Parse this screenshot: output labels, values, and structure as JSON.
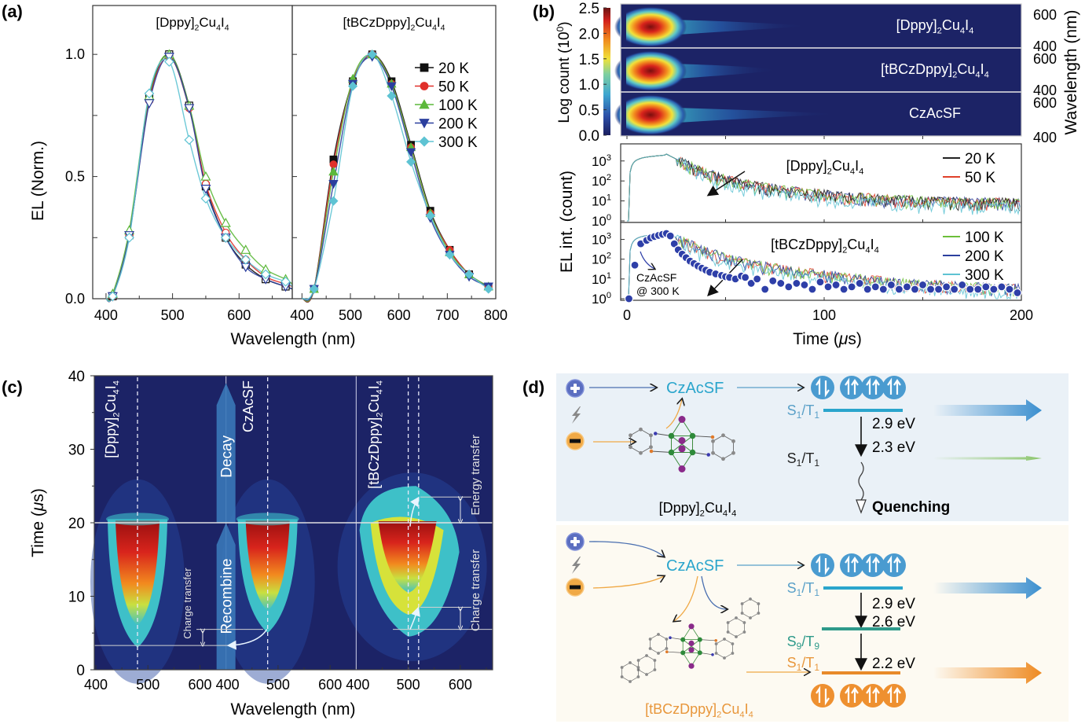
{
  "figure": {
    "panels": [
      "(a)",
      "(b)",
      "(c)",
      "(d)"
    ]
  },
  "chart_data": [
    {
      "id": "a",
      "type": "line",
      "panel_label": "(a)",
      "ylabel": "EL (Norm.)",
      "xlabel": "Wavelength (nm)",
      "ylim": [
        0,
        1.2
      ],
      "yticks": [
        "0.0",
        "0.5",
        "1.0"
      ],
      "subplots": [
        {
          "title": "[Dppy]2Cu4I4",
          "title_parts": [
            "[Dppy]",
            "2",
            "Cu",
            "4",
            "I",
            "4"
          ],
          "xlim": [
            380,
            680
          ],
          "xticks": [
            "400",
            "500",
            "600"
          ],
          "marker_style": "open",
          "series": [
            {
              "name": "20 K",
              "x": [
                400,
                410,
                435,
                465,
                495,
                525,
                550,
                580,
                610,
                640,
                670,
                680
              ],
              "y": [
                0.0,
                0.01,
                0.26,
                0.82,
                1.0,
                0.79,
                0.46,
                0.25,
                0.14,
                0.08,
                0.05,
                0.04
              ]
            },
            {
              "name": "50 K",
              "x": [
                400,
                410,
                435,
                465,
                495,
                525,
                550,
                580,
                610,
                640,
                670,
                680
              ],
              "y": [
                0.0,
                0.01,
                0.26,
                0.81,
                0.99,
                0.78,
                0.47,
                0.27,
                0.16,
                0.09,
                0.06,
                0.05
              ]
            },
            {
              "name": "100 K",
              "x": [
                400,
                410,
                435,
                465,
                495,
                525,
                550,
                580,
                610,
                640,
                670,
                680
              ],
              "y": [
                0.0,
                0.02,
                0.28,
                0.83,
                1.0,
                0.79,
                0.5,
                0.31,
                0.2,
                0.12,
                0.08,
                0.06
              ]
            },
            {
              "name": "200 K",
              "x": [
                400,
                410,
                435,
                465,
                495,
                525,
                550,
                580,
                610,
                640,
                670,
                680
              ],
              "y": [
                0.0,
                0.01,
                0.26,
                0.8,
                0.99,
                0.78,
                0.45,
                0.25,
                0.13,
                0.08,
                0.05,
                0.04
              ]
            },
            {
              "name": "300 K",
              "x": [
                400,
                410,
                435,
                465,
                495,
                525,
                550,
                580,
                610,
                640,
                670,
                680
              ],
              "y": [
                0.0,
                0.01,
                0.25,
                0.84,
                0.97,
                0.65,
                0.41,
                0.25,
                0.16,
                0.1,
                0.07,
                0.05
              ]
            }
          ]
        },
        {
          "title": "[tBCzDppy]2Cu4I4",
          "title_parts": [
            "[tBCzDppy]",
            "2",
            "Cu",
            "4",
            "I",
            "4"
          ],
          "xlim": [
            380,
            800
          ],
          "xticks": [
            "400",
            "500",
            "600",
            "700",
            "800"
          ],
          "marker_style": "filled",
          "series": [
            {
              "name": "20 K",
              "x": [
                400,
                425,
                465,
                505,
                545,
                585,
                625,
                665,
                705,
                745,
                785
              ],
              "y": [
                0.0,
                0.04,
                0.57,
                0.89,
                1.0,
                0.89,
                0.63,
                0.36,
                0.2,
                0.1,
                0.05
              ]
            },
            {
              "name": "50 K",
              "x": [
                400,
                425,
                465,
                505,
                545,
                585,
                625,
                665,
                705,
                745,
                785
              ],
              "y": [
                0.0,
                0.04,
                0.55,
                0.89,
                1.0,
                0.88,
                0.62,
                0.35,
                0.2,
                0.1,
                0.05
              ]
            },
            {
              "name": "100 K",
              "x": [
                400,
                425,
                465,
                505,
                545,
                585,
                625,
                665,
                705,
                745,
                785
              ],
              "y": [
                0.0,
                0.04,
                0.52,
                0.9,
                1.0,
                0.88,
                0.62,
                0.35,
                0.19,
                0.1,
                0.05
              ]
            },
            {
              "name": "200 K",
              "x": [
                400,
                425,
                465,
                505,
                545,
                585,
                625,
                665,
                705,
                745,
                785
              ],
              "y": [
                0.0,
                0.04,
                0.47,
                0.88,
                0.99,
                0.87,
                0.6,
                0.33,
                0.18,
                0.09,
                0.05
              ]
            },
            {
              "name": "300 K",
              "x": [
                400,
                425,
                465,
                505,
                545,
                585,
                625,
                665,
                705,
                745,
                785
              ],
              "y": [
                0.0,
                0.04,
                0.4,
                0.87,
                1.0,
                0.83,
                0.56,
                0.34,
                0.18,
                0.1,
                0.04
              ]
            }
          ]
        }
      ],
      "legend": {
        "placement": "top-right of right subplot",
        "entries": [
          {
            "name": "20 K",
            "color": "#111111",
            "marker": "square"
          },
          {
            "name": "50 K",
            "color": "#e0302a",
            "marker": "circle"
          },
          {
            "name": "100 K",
            "color": "#5cb83a",
            "marker": "triangle-up"
          },
          {
            "name": "200 K",
            "color": "#2b3f9e",
            "marker": "triangle-down"
          },
          {
            "name": "300 K",
            "color": "#5ec3d3",
            "marker": "diamond"
          }
        ]
      }
    },
    {
      "id": "b-top",
      "type": "heatmap",
      "panel_label": "(b)",
      "colorbar": {
        "label": "Log count (10⁰)",
        "label_parts": [
          "Log count (10",
          "0",
          ")"
        ],
        "ticks": [
          "0.0",
          "0.5",
          "1.0",
          "1.5",
          "2.0",
          "2.5"
        ],
        "range": [
          0,
          2.5
        ]
      },
      "ylabel_right": "Wavelength (nm)",
      "yticks_right": [
        "400",
        "600"
      ],
      "xlim": [
        0,
        200
      ],
      "rows": [
        {
          "name": "[Dppy]2Cu4I4",
          "name_parts": [
            "[Dppy]",
            "2",
            "Cu",
            "4",
            "I",
            "4"
          ],
          "peak_time_us": 20,
          "peak_wavelength_nm": 480,
          "tail_extent": 0.45
        },
        {
          "name": "[tBCzDppy]2Cu4I4",
          "name_parts": [
            "[tBCzDppy]",
            "2",
            "Cu",
            "4",
            "I",
            "4"
          ],
          "peak_time_us": 20,
          "peak_wavelength_nm": 500,
          "tail_extent": 0.35
        },
        {
          "name": "CzAcSF",
          "name_parts": [
            "CzAcSF"
          ],
          "peak_time_us": 20,
          "peak_wavelength_nm": 480,
          "tail_extent": 0.55
        }
      ]
    },
    {
      "id": "b-bottom",
      "type": "line",
      "xlabel": "Time (μs)",
      "xlabel_parts": [
        "Time (",
        "μ",
        "s)"
      ],
      "ylabel": "EL int. (count)",
      "xlim": [
        0,
        200
      ],
      "xticks": [
        "0",
        "100",
        "200"
      ],
      "yscale": "log",
      "ylim": [
        1,
        5000
      ],
      "yticks": [
        {
          "base": "10",
          "exp": "0"
        },
        {
          "base": "10",
          "exp": "1"
        },
        {
          "base": "10",
          "exp": "2"
        },
        {
          "base": "10",
          "exp": "3"
        }
      ],
      "subplots": [
        {
          "title": "[Dppy]2Cu4I4",
          "title_parts": [
            "[Dppy]",
            "2",
            "Cu",
            "4",
            "I",
            "4"
          ],
          "legend": [
            {
              "name": "20 K",
              "color": "#222222"
            },
            {
              "name": "50 K",
              "color": "#e0402a"
            }
          ],
          "peak_count": 2000,
          "peak_time_us": 20,
          "floor_count": 8
        },
        {
          "title": "[tBCzDppy]2Cu4I4",
          "title_parts": [
            "[tBCzDppy]",
            "2",
            "Cu",
            "4",
            "I",
            "4"
          ],
          "legend": [
            {
              "name": "100 K",
              "color": "#6cbf3a"
            },
            {
              "name": "200 K",
              "color": "#2b3f9e"
            },
            {
              "name": "300 K",
              "color": "#5ec3d3"
            }
          ],
          "peak_count": 2000,
          "peak_time_us": 20,
          "floor_count": 3,
          "reference": {
            "name": "CzAcSF @ 300 K",
            "line1": "CzAcSF",
            "line2": "@ 300 K",
            "color": "#2e3fa8",
            "x": [
              1,
              4,
              7,
              10,
              12,
              14,
              16,
              18,
              20,
              22,
              24,
              26,
              28,
              30,
              32,
              34,
              36,
              38,
              40,
              42,
              45,
              48,
              50,
              52,
              55,
              58,
              60,
              63,
              66,
              70,
              74,
              78,
              82,
              86,
              90,
              94,
              98,
              102,
              106,
              110,
              114,
              118,
              122,
              126,
              130,
              134,
              138,
              142,
              146,
              150,
              154,
              158,
              162,
              166,
              170,
              174,
              178,
              182,
              186,
              190,
              194,
              198
            ],
            "y": [
              1,
              50,
              600,
              900,
              1200,
              1400,
              1600,
              1800,
              2000,
              1500,
              600,
              300,
              180,
              120,
              80,
              60,
              45,
              35,
              28,
              22,
              18,
              15,
              13,
              12,
              10,
              14,
              12,
              6,
              10,
              3,
              8,
              6,
              4,
              6,
              5,
              3,
              7,
              4,
              5,
              3,
              4,
              6,
              3,
              4,
              3,
              5,
              3,
              4,
              3,
              5,
              3,
              3,
              4,
              3,
              5,
              3,
              3,
              4,
              3,
              4,
              3,
              2
            ]
          }
        }
      ]
    },
    {
      "id": "c",
      "type": "heatmap",
      "panel_label": "(c)",
      "ylabel": "Time (μs)",
      "ylabel_parts": [
        "Time (",
        "μ",
        "s)"
      ],
      "xlabel": "Wavelength (nm)",
      "ylim": [
        0,
        40
      ],
      "yticks": [
        "0",
        "10",
        "20",
        "30",
        "40"
      ],
      "subplots": [
        {
          "name": "[Dppy]2Cu4I4",
          "name_parts": [
            "[Dppy]",
            "2",
            "Cu",
            "4",
            "I",
            "4"
          ],
          "xlim": [
            400,
            650
          ],
          "xticks": [
            "400",
            "500",
            "600"
          ],
          "peak_wavelength_nm": 480,
          "onset_time_us": 3.5,
          "end_time_us": 20
        },
        {
          "name": "CzAcSF",
          "name_parts": [
            "CzAcSF"
          ],
          "xlim": [
            400,
            650
          ],
          "xticks": [
            "400",
            "500",
            "600"
          ],
          "peak_wavelength_nm": 480,
          "onset_time_us": 5.5,
          "end_time_us": 20
        },
        {
          "name": "[tBCzDppy]2Cu4I4",
          "name_parts": [
            "[tBCzDppy]",
            "2",
            "Cu",
            "4",
            "I",
            "4"
          ],
          "xlim": [
            400,
            650
          ],
          "xticks": [
            "400",
            "500",
            "600"
          ],
          "peak_wavelength_nm": 500,
          "onset_time_us": 5.5,
          "end_time_us": 20,
          "energy_transfer_end_us": 23.5
        }
      ],
      "annotations": {
        "decay": "Decay",
        "recombine": "Recombine",
        "charge_transfer_left": "Charge transfer",
        "charge_transfer_right": "Charge transfer",
        "energy_transfer": "Energy transfer",
        "pulse_end_time_us": 20
      }
    }
  ],
  "diagram": {
    "panel_label": "(d)",
    "top": {
      "background": "#eaf1f7",
      "hole_icon": "plus-circle",
      "electron_icon": "minus-circle",
      "voltage_icon": "lightning-bolt",
      "host_label": "CzAcSF",
      "host_color": "#2aa5cc",
      "molecule_label": "[Dppy]2Cu4I4",
      "molecule_label_parts": [
        "[Dppy]",
        "2",
        "Cu",
        "4",
        "I",
        "4"
      ],
      "levels": [
        {
          "label": "S1/T1",
          "sub1": "1",
          "sub2": "1",
          "color": "#2aa5cc",
          "label_color": "#5aa0c8"
        },
        {
          "label": "S1/T1",
          "sub1": "1",
          "sub2": "1",
          "color": "#7dbb44",
          "label_color": "#222222"
        }
      ],
      "energies": [
        "2.9 eV",
        "2.3 eV"
      ],
      "quenching": "Quenching",
      "spin_color": "#4a9bd0",
      "emission_colors": [
        "#3b8fcf",
        "#8cc66c"
      ]
    },
    "bottom": {
      "background": "#fdfaf2",
      "hole_icon": "plus-circle",
      "electron_icon": "minus-circle",
      "voltage_icon": "lightning-bolt",
      "host_label": "CzAcSF",
      "host_color": "#2aa5cc",
      "molecule_label": "[tBCzDppy]2Cu4I4",
      "molecule_label_parts": [
        "[tBCzDppy]",
        "2",
        "Cu",
        "4",
        "I",
        "4"
      ],
      "molecule_label_color": "#e8973c",
      "levels": [
        {
          "label": "S1/T1",
          "sub1": "1",
          "sub2": "1",
          "color": "#2aa5cc",
          "label_color": "#5aa0c8"
        },
        {
          "label": "S9/T9",
          "sub1": "9",
          "sub2": "9",
          "color": "#2e9a8a",
          "label_color": "#2e9a8a"
        },
        {
          "label": "S1/T1",
          "sub1": "1",
          "sub2": "1",
          "color": "#e88a2a",
          "label_color": "#e8973c"
        }
      ],
      "energies": [
        "2.9 eV",
        "2.6 eV",
        "2.2 eV"
      ],
      "spin_color_top": "#4a9bd0",
      "spin_color_bottom": "#ee9030",
      "emission_colors": [
        "#3b8fcf",
        "#ee8a22"
      ]
    }
  }
}
